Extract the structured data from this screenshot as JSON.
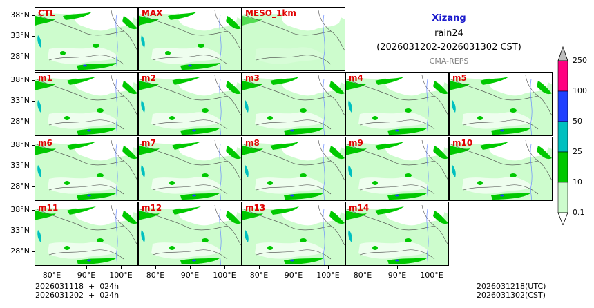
{
  "header": {
    "region": "Xizang",
    "variable": "rain24",
    "period": "(2026031202-2026031302 CST)",
    "model": "CMA-REPS"
  },
  "panels": [
    "CTL",
    "MAX",
    "MESO_1km",
    "m1",
    "m2",
    "m3",
    "m4",
    "m5",
    "m6",
    "m7",
    "m8",
    "m9",
    "m10",
    "m11",
    "m12",
    "m13",
    "m14"
  ],
  "lat_labels": [
    "38°N",
    "33°N",
    "28°N"
  ],
  "lon_labels": [
    "80°E",
    "90°E",
    "100°E"
  ],
  "colorbar": {
    "levels": [
      "0.1",
      "10",
      "25",
      "50",
      "100",
      "250"
    ],
    "colors": [
      "#cdfccd",
      "#00c800",
      "#00c0c0",
      "#2040ff",
      "#ff0080",
      "#bdbdbd"
    ]
  },
  "footer": {
    "left_line1": "2026031118  +  024h",
    "left_line2": "2026031202  +  024h",
    "right_line1": "2026031218(UTC)",
    "right_line2": "2026031302(CST)"
  }
}
